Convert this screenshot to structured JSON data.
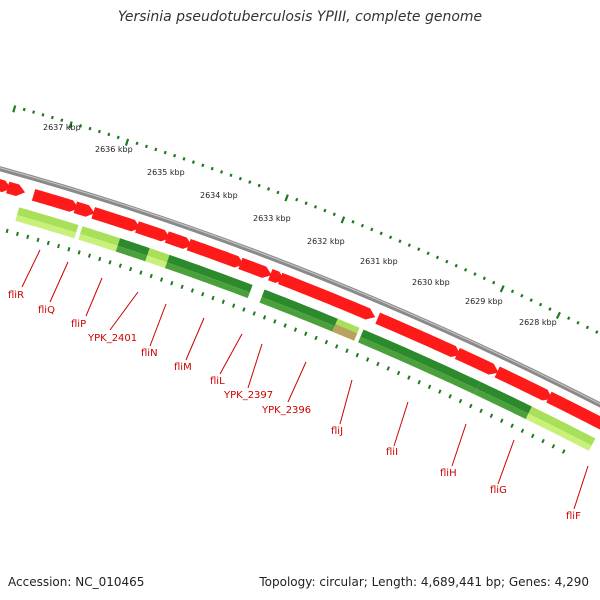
{
  "title": "Yersinia pseudotuberculosis YPIII, complete genome",
  "footer": {
    "accession": "Accession: NC_010465",
    "topology": "Topology: circular; Length: 4,689,441 bp; Genes: 4,290"
  },
  "colors": {
    "background": "#ffffff",
    "backbone": "#8a8a8a",
    "genes": "#ff1a1a",
    "track_dark_green": "#2c8a2c",
    "track_light_green": "#a8e05a",
    "ticks": "#1d7a1d",
    "labels": "#cc0000"
  },
  "scale_labels": [
    "2637 kbp",
    "2636 kbp",
    "2635 kbp",
    "2634 kbp",
    "2633 kbp",
    "2632 kbp",
    "2631 kbp",
    "2630 kbp",
    "2629 kbp",
    "2628 kbp"
  ],
  "gene_labels": [
    "fliR",
    "fliQ",
    "fliP",
    "YPK_2401",
    "fliN",
    "fliM",
    "fliL",
    "YPK_2397",
    "YPK_2396",
    "fliJ",
    "fliI",
    "fliH",
    "fliG",
    "fliF"
  ]
}
